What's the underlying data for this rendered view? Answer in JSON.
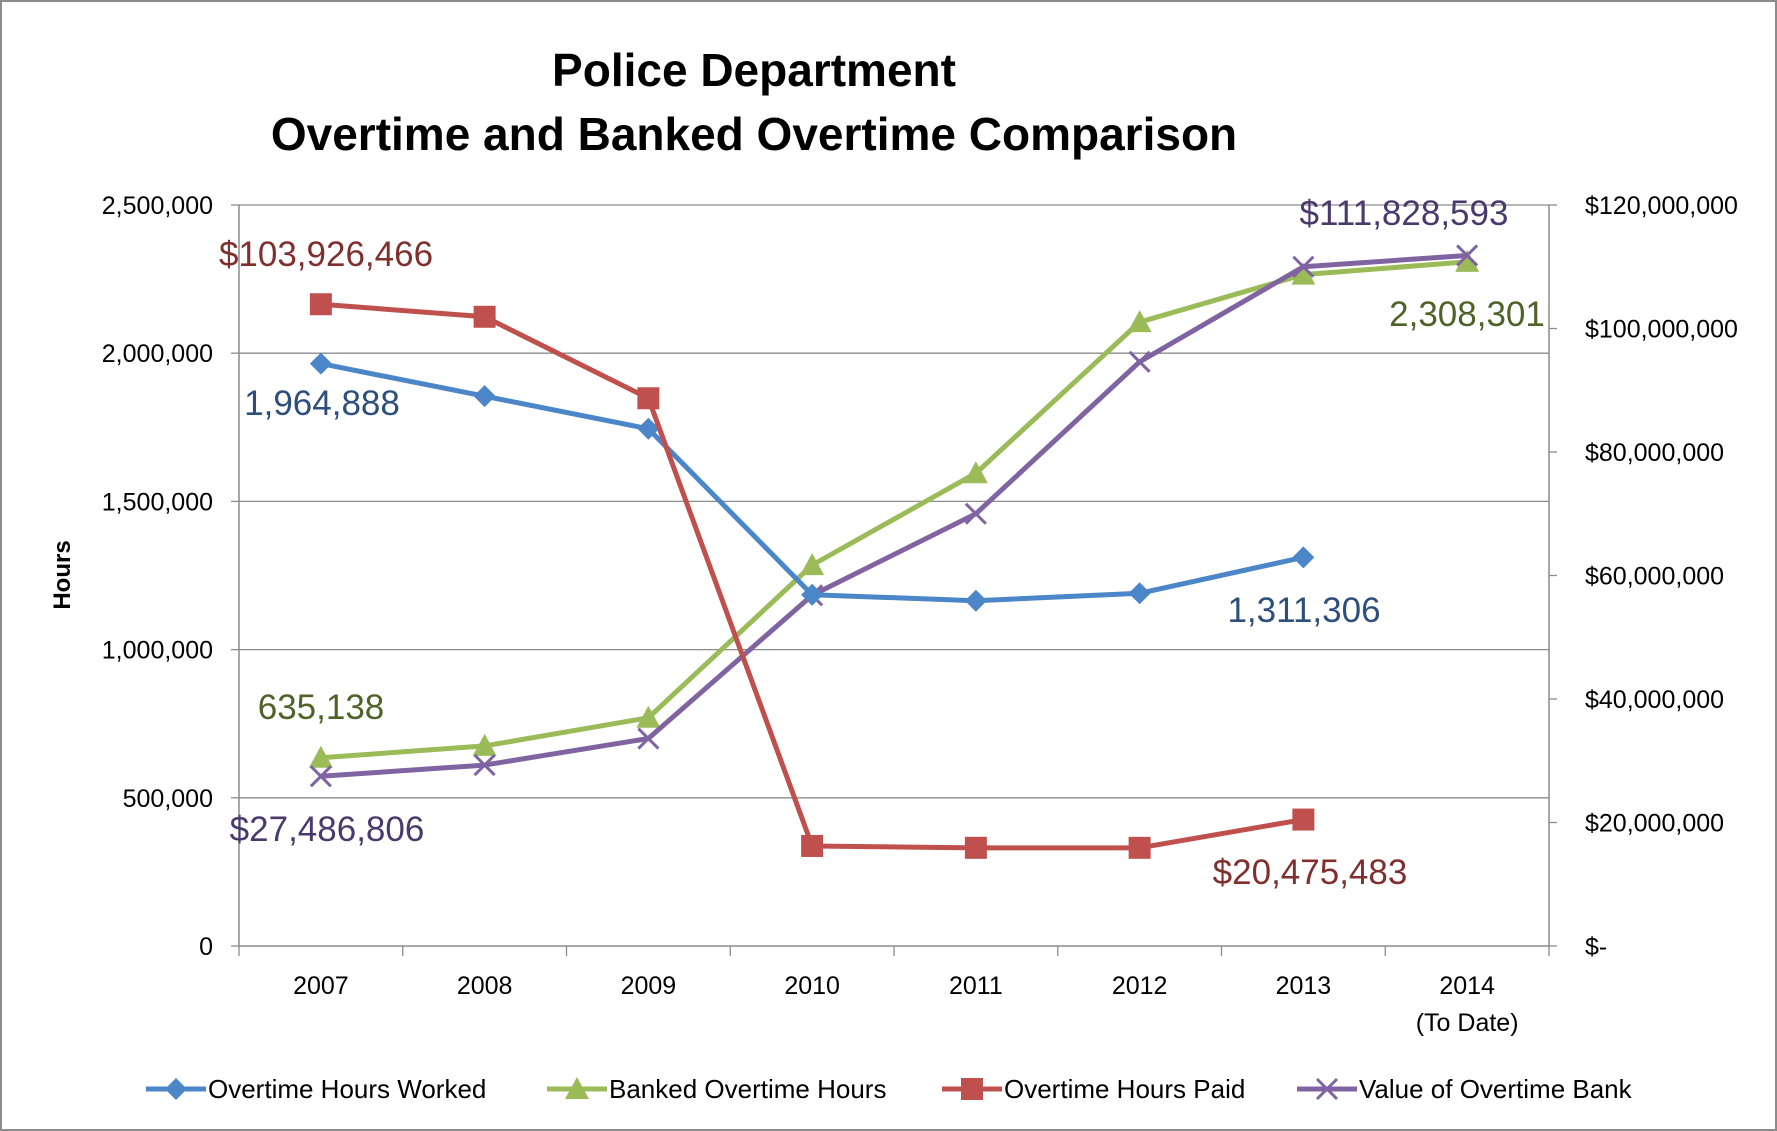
{
  "chart_data": {
    "type": "line",
    "title": [
      "Police Department",
      "Overtime and Banked Overtime Comparison"
    ],
    "ylabel": "Hours",
    "y2label": "",
    "categories": [
      [
        "2007"
      ],
      [
        "2008"
      ],
      [
        "2009"
      ],
      [
        "2010"
      ],
      [
        "2011"
      ],
      [
        "2012"
      ],
      [
        "2013"
      ],
      [
        "2014",
        "(To Date)"
      ]
    ],
    "ylim": [
      0,
      2500000
    ],
    "y2lim": [
      0,
      120000000
    ],
    "y_ticks": [
      "0",
      "500,000",
      "1,000,000",
      "1,500,000",
      "2,000,000",
      "2,500,000"
    ],
    "y2_ticks": [
      "$-",
      "$20,000,000",
      "$40,000,000",
      "$60,000,000",
      "$80,000,000",
      "$100,000,000",
      "$120,000,000"
    ],
    "grid": true,
    "legend_position": "bottom",
    "series": [
      {
        "name": "Overtime Hours Worked",
        "axis": "left",
        "color": "#4a86c8",
        "marker": "diamond",
        "values": [
          1964888,
          1855000,
          1745000,
          1185000,
          1165000,
          1190000,
          1311306,
          null
        ],
        "labels": [
          {
            "index": 0,
            "text": "1,964,888",
            "color": "#2e4f7c"
          },
          {
            "index": 6,
            "text": "1,311,306",
            "color": "#2e4f7c"
          }
        ]
      },
      {
        "name": "Banked Overtime Hours",
        "axis": "left",
        "color": "#9bbb59",
        "marker": "triangle",
        "values": [
          635138,
          675000,
          770000,
          1285000,
          1595000,
          2105000,
          2265000,
          2308301
        ],
        "labels": [
          {
            "index": 0,
            "text": "635,138",
            "color": "#4f6228"
          },
          {
            "index": 7,
            "text": "2,308,301",
            "color": "#4f6228"
          }
        ]
      },
      {
        "name": "Overtime Hours Paid",
        "axis": "right",
        "color": "#c0504d",
        "marker": "square",
        "values": [
          103926466,
          101900000,
          88700000,
          16200000,
          15900000,
          15900000,
          20475483,
          null
        ],
        "labels": [
          {
            "index": 0,
            "text": "$103,926,466",
            "color": "#7f2f2e"
          },
          {
            "index": 6,
            "text": "$20,475,483",
            "color": "#7f2f2e"
          }
        ]
      },
      {
        "name": "Value of Overtime Bank",
        "axis": "right",
        "color": "#8064a2",
        "marker": "x",
        "values": [
          27486806,
          29300000,
          33600000,
          56800000,
          70000000,
          94600000,
          110000000,
          111828593
        ],
        "labels": [
          {
            "index": 0,
            "text": "$27,486,806",
            "color": "#4a3a6b"
          },
          {
            "index": 7,
            "text": "$111,828,593",
            "color": "#4a3a6b"
          }
        ]
      }
    ]
  }
}
